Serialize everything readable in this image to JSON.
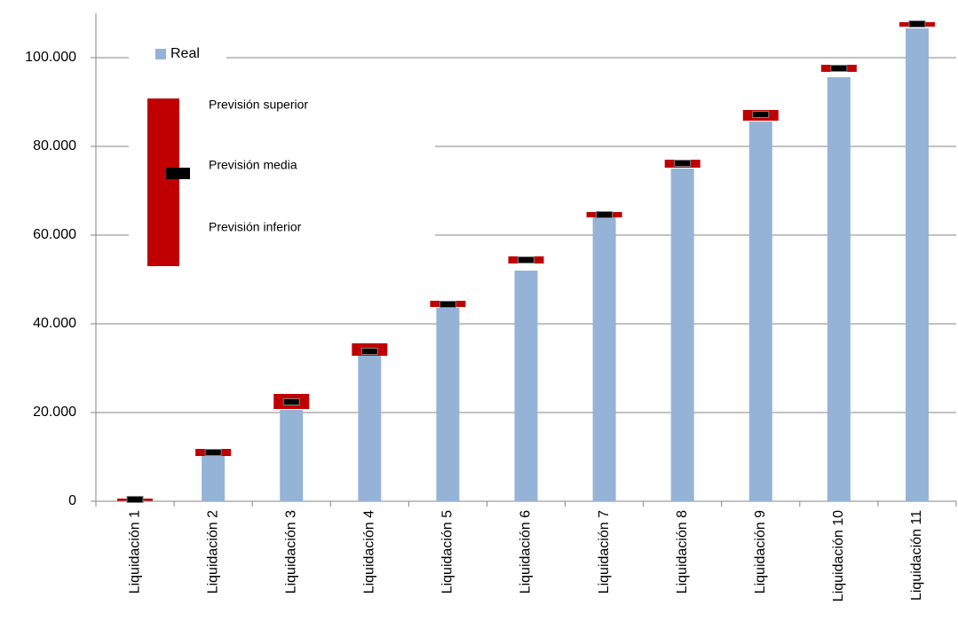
{
  "chart_data": {
    "type": "forecast-bar",
    "categories": [
      "Liquidación 1",
      "Liquidación 2",
      "Liquidación 3",
      "Liquidación 4",
      "Liquidación 5",
      "Liquidación 6",
      "Liquidación 7",
      "Liquidación 8",
      "Liquidación 9",
      "Liquidación 10",
      "Liquidación 11"
    ],
    "series": [
      {
        "name": "Real",
        "color": "#95b3d7",
        "values": [
          200,
          10400,
          20600,
          33000,
          43600,
          52000,
          64000,
          75000,
          85600,
          95600,
          106600
        ]
      },
      {
        "name": "Previsión superior",
        "color": "#c00000",
        "values": [
          600,
          11800,
          24200,
          35600,
          45200,
          55200,
          65200,
          77000,
          88200,
          98400,
          108000
        ]
      },
      {
        "name": "Previsión media",
        "color": "#000000",
        "values": [
          400,
          11000,
          22400,
          33800,
          44400,
          54400,
          64600,
          76200,
          87200,
          97600,
          107600
        ]
      },
      {
        "name": "Previsión inferior",
        "color": "#c00000",
        "values": [
          100,
          10200,
          20800,
          32800,
          43800,
          53600,
          64000,
          75200,
          85800,
          96800,
          107000
        ]
      }
    ],
    "ylim": [
      0,
      110000
    ],
    "yticks": [
      0,
      {
        "value": 20000,
        "label": "20.000"
      },
      {
        "value": 40000,
        "label": "40.000"
      },
      {
        "value": 60000,
        "label": "60.000"
      },
      {
        "value": 80000,
        "label": "80.000"
      },
      {
        "value": 100000,
        "label": "100.000"
      }
    ],
    "grid": true
  }
}
